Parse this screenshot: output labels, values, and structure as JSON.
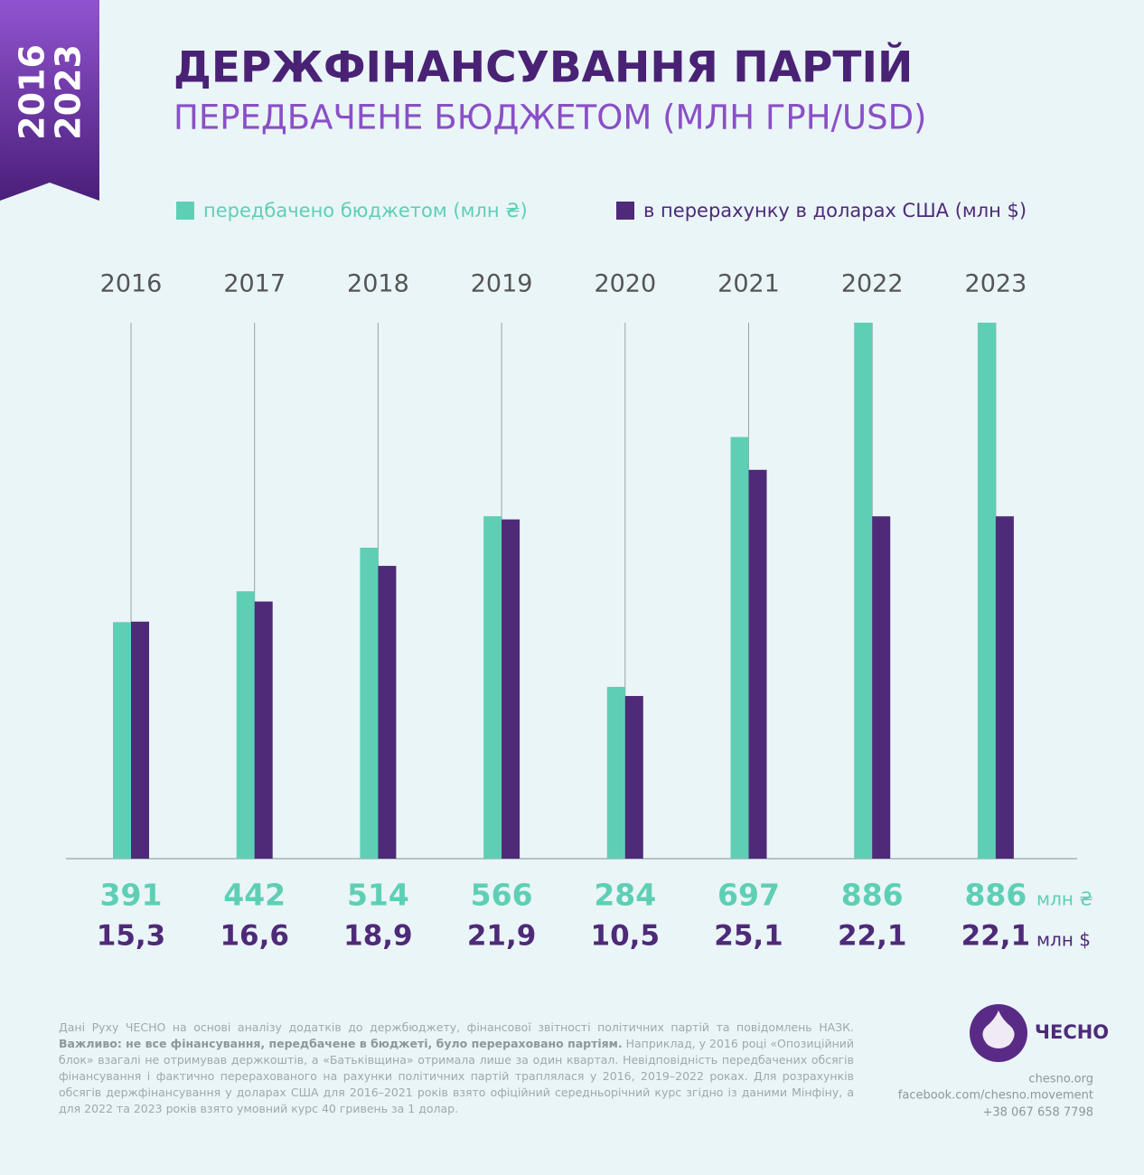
{
  "badge": [
    "2016",
    "2023"
  ],
  "chart_data": {
    "type": "bar",
    "title": "ДЕРЖФІНАНСУВАННЯ ПАРТІЙ",
    "subtitle": "ПЕРЕДБАЧЕНЕ БЮДЖЕТОМ (МЛН ГРН/USD)",
    "categories": [
      "2016",
      "2017",
      "2018",
      "2019",
      "2020",
      "2021",
      "2022",
      "2023"
    ],
    "series": [
      {
        "name": "передбачено бюджетом (млн ₴)",
        "color": "#5ecfb5",
        "unit": "млн ₴",
        "values": [
          391,
          442,
          514,
          566,
          284,
          697,
          886,
          886
        ]
      },
      {
        "name": "в перерахунку в доларах США (млн $)",
        "color": "#4e2a78",
        "unit": "млн $",
        "axis": "y2",
        "values": [
          15.3,
          16.6,
          18.9,
          21.9,
          10.5,
          25.1,
          22.1,
          22.1
        ],
        "value_labels": [
          "15,3",
          "16,6",
          "18,9",
          "21,9",
          "10,5",
          "25,1",
          "22,1",
          "22,1"
        ]
      }
    ],
    "ylim": [
      0,
      886
    ],
    "y2lim": [
      0,
      34.6
    ]
  },
  "footnote": {
    "text1": "Дані Руху ЧЕСНО на основі аналізу додатків до держбюджету, фінансової звітності політичних партій та повідомлень НАЗК. ",
    "bold": "Важливо: не все фінансування, передбачене в бюджеті, було перераховано партіям.",
    "text2": " Наприклад, у 2016 році «Опозиційний блок» взагалі не отримував держкоштів, а «Батьківщина» отримала лише за один квартал. Невідповідність передбачених обсягів фінансування і фактично перерахованого на рахунки політичних партій траплялася у 2016, 2019–2022 роках. Для розрахунків обсягів держфінансування у доларах США для 2016–2021 років взято офіційний середньорічний курс згідно із даними Мінфіну, а для 2022 та 2023 років взято умовний курс 40 гривень за 1 долар."
  },
  "brand": "ЧЕСНО",
  "contacts": [
    "chesno.org",
    "facebook.com/chesno.movement",
    "+38 067 658 7798"
  ]
}
